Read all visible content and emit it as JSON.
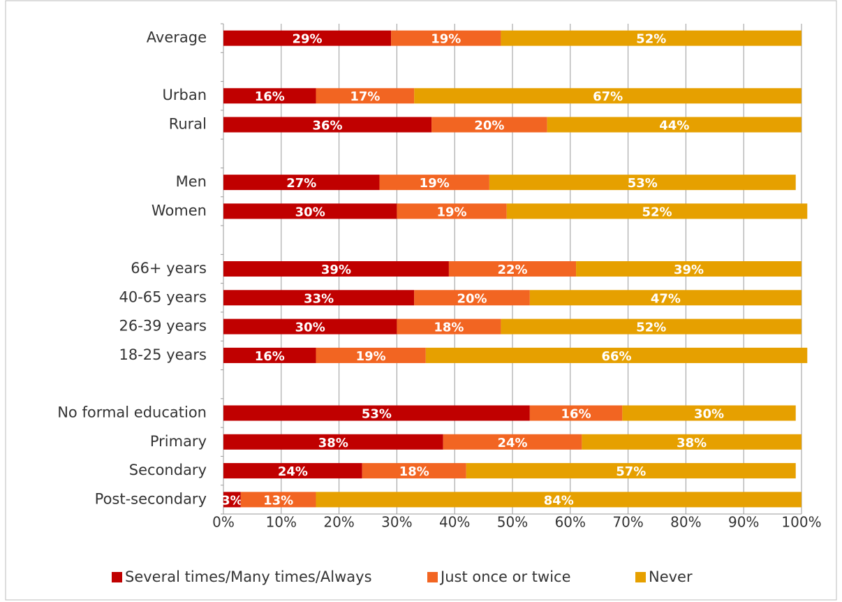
{
  "chart_data": {
    "type": "stacked-bar-horizontal",
    "categories": [
      "Average",
      null,
      "Urban",
      "Rural",
      null,
      "Men",
      "Women",
      null,
      "66+ years",
      "40-65 years",
      "26-39 years",
      "18-25 years",
      null,
      "No formal education",
      "Primary",
      "Secondary",
      "Post-secondary"
    ],
    "series": [
      {
        "name": "Several times/Many times/Always",
        "color": "#c00000",
        "values": [
          29,
          null,
          16,
          36,
          null,
          27,
          30,
          null,
          39,
          33,
          30,
          16,
          null,
          53,
          38,
          24,
          3
        ],
        "value_labels": [
          "29%",
          null,
          "16%",
          "36%",
          null,
          "27%",
          "30%",
          null,
          "39%",
          "33%",
          "30%",
          "16%",
          null,
          "53%",
          "38%",
          "24%",
          "3%"
        ]
      },
      {
        "name": "Just once or twice",
        "color": "#f26522",
        "values": [
          19,
          null,
          17,
          20,
          null,
          19,
          19,
          null,
          22,
          20,
          18,
          19,
          null,
          16,
          24,
          18,
          13
        ],
        "value_labels": [
          "19%",
          null,
          "17%",
          "20%",
          null,
          "19%",
          "19%",
          null,
          "22%",
          "20%",
          "18%",
          "19%",
          null,
          "16%",
          "24%",
          "18%",
          "13%"
        ]
      },
      {
        "name": "Never",
        "color": "#e6a000",
        "values": [
          52,
          null,
          67,
          44,
          null,
          53,
          52,
          null,
          39,
          47,
          52,
          66,
          null,
          30,
          38,
          57,
          84
        ],
        "value_labels": [
          "52%",
          null,
          "67%",
          "44%",
          null,
          "53%",
          "52%",
          null,
          "39%",
          "47%",
          "52%",
          "66%",
          null,
          "30%",
          "38%",
          "57%",
          "84%"
        ]
      }
    ],
    "xlim": [
      0,
      100
    ],
    "xticks": [
      {
        "value": 0,
        "label": "0%"
      },
      {
        "value": 10,
        "label": "10%"
      },
      {
        "value": 20,
        "label": "20%"
      },
      {
        "value": 30,
        "label": "30%"
      },
      {
        "value": 40,
        "label": "40%"
      },
      {
        "value": 50,
        "label": "50%"
      },
      {
        "value": 60,
        "label": "60%"
      },
      {
        "value": 70,
        "label": "70%"
      },
      {
        "value": 80,
        "label": "80%"
      },
      {
        "value": 90,
        "label": "90%"
      },
      {
        "value": 100,
        "label": "100%"
      }
    ],
    "grid": true,
    "legend": "bottom"
  }
}
